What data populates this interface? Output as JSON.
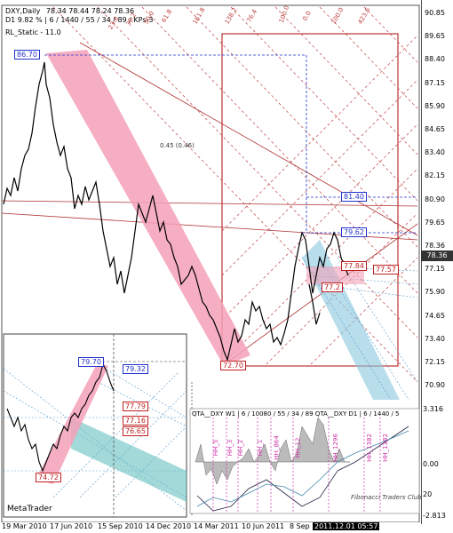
{
  "window": {
    "title": "DXY,Daily",
    "ohlc": "78.34 78.44 78.24 78.36",
    "info_line": "D1  9.82 %  |  6 / 1440 / 55 / 34 / 89 / KPs-3",
    "indicator_label": "RL_Static - 11.0"
  },
  "price_axis": {
    "labels": [
      "90.85",
      "89.65",
      "88.40",
      "87.15",
      "85.90",
      "84.65",
      "83.40",
      "82.15",
      "80.90",
      "79.65",
      "78.36",
      "77.15",
      "75.90",
      "74.65",
      "73.40",
      "72.15",
      "70.90"
    ],
    "current_price": "78.36"
  },
  "date_axis": {
    "labels": [
      "19 Mar 2010",
      "17 Jun 2010",
      "15 Sep 2010",
      "14 Dec 2010",
      "14 Mar 2011",
      "10 Jun 2011",
      "8 Sep",
      "2011.12.01 05:57"
    ]
  },
  "level_boxes": [
    {
      "text": "86.70"
    },
    {
      "text": "81.40"
    },
    {
      "text": "79.62"
    },
    {
      "text": "77.84"
    },
    {
      "text": "77.57"
    },
    {
      "text": "77.2"
    },
    {
      "text": "72.70"
    }
  ],
  "fan_labels": [
    "100.0",
    "61.8",
    "50.0",
    "38.2",
    "23.6",
    "161.8",
    "138.2",
    "76.4",
    "0.0",
    "100.0",
    "423.6",
    "0.45 (0.46)"
  ],
  "sub_window": {
    "label": "QTA__DXY W1  |  6 / 10080 / 55 / 34 / 89    QTA__DXY D1  |  6 / 1440 / 5",
    "scale": [
      "3.316",
      "0.00",
      "20",
      "-2.813"
    ],
    "markers": [
      "HH_5",
      "HH_3",
      "HH_2",
      "HH_1",
      "HH_864",
      "HH_12",
      "HH_1296",
      "HH_1382",
      "HH_1382"
    ],
    "watermark": "Fibonacci Traders Club"
  },
  "inset": {
    "levels": [
      {
        "text": "79.70"
      },
      {
        "text": "79.32"
      },
      {
        "text": "77.79"
      },
      {
        "text": "77.16"
      },
      {
        "text": "76.65"
      },
      {
        "text": "74.72"
      }
    ],
    "brand": "MetaTrader"
  },
  "colors": {
    "bullish": "#000000",
    "fib_red": "#cc2222",
    "fib_blue": "#3366cc",
    "pink_channel": "#f4a0b8",
    "blue_channel": "#88c8e0"
  }
}
